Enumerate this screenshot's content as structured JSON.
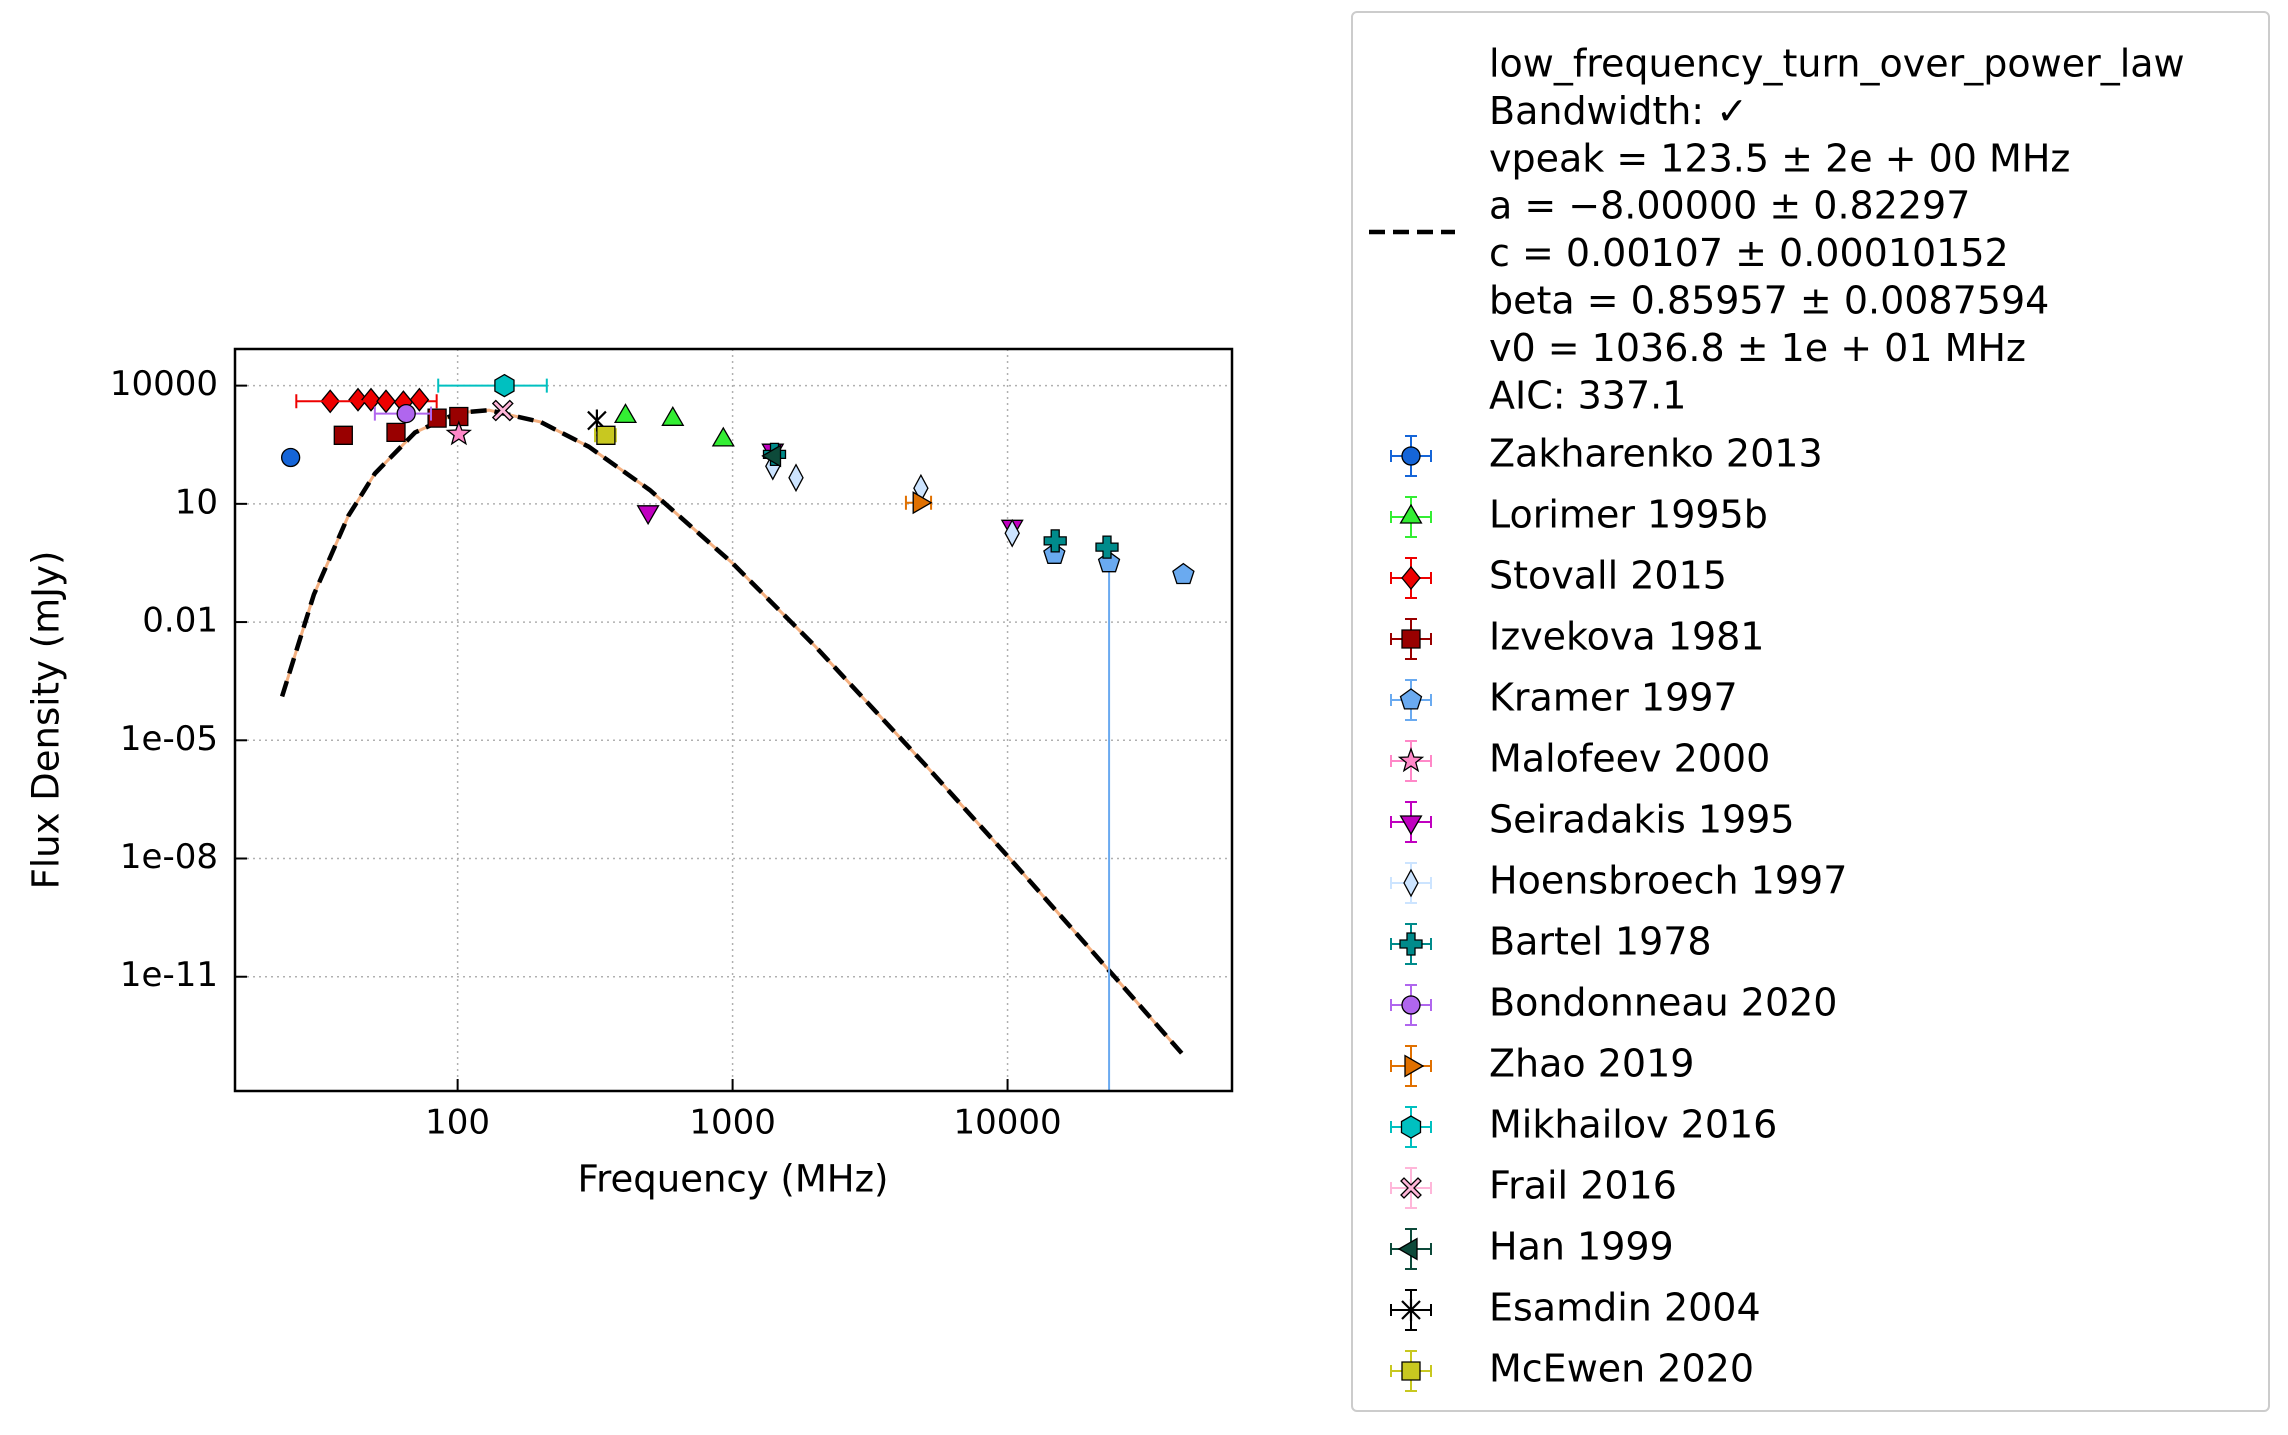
{
  "chart_data": {
    "type": "scatter",
    "x_label": "Frequency (MHz)",
    "y_label": "Flux Density (mJy)",
    "xscale": "log",
    "yscale": "log",
    "grid": true,
    "xlim": [
      15.5,
      65500
    ],
    "ylim": [
      1.26e-14,
      85000
    ],
    "xticks": [
      100,
      1000,
      10000
    ],
    "yticks": [
      10000,
      10,
      0.01,
      {
        "value": 1e-05,
        "label": "1e-05"
      },
      {
        "value": 1e-08,
        "label": "1e-08"
      },
      {
        "value": 1e-11,
        "label": "1e-11"
      }
    ],
    "fit": {
      "name": "low_frequency_turn_over_power_law",
      "color": "#000000",
      "details": [
        "Bandwidth: ✓",
        "vpeak = 123.5 ± 2e + 00 MHz",
        "a = −8.00000 ± 0.82297",
        "c = 0.00107 ± 0.00010152",
        "beta = 0.85957 ± 0.0087594",
        "v0 = 1036.8 ± 1e + 01 MHz",
        "AIC: 337.1"
      ],
      "x": [
        23,
        30,
        40,
        50,
        70,
        100,
        130,
        200,
        300,
        500,
        1000,
        2000,
        5000,
        10000,
        20000,
        43000
      ],
      "values": [
        0.00013,
        0.05,
        4.9,
        59,
        646,
        2040,
        2380,
        1200,
        282,
        22.4,
        0.31,
        0.0024,
        2.45e-06,
        1.15e-08,
        5e-11,
        1.15e-13
      ]
    },
    "series": [
      {
        "name": "Zakharenko 2013",
        "color": "#1565d8",
        "marker": "circle",
        "x": [
          24.7
        ],
        "values": [
          150
        ]
      },
      {
        "name": "Lorimer 1995b",
        "color": "#33ee33",
        "marker": "triangle-up",
        "x": [
          408,
          606,
          925
        ],
        "values": [
          1660,
          1400,
          420
        ]
      },
      {
        "name": "Stovall 2015",
        "color": "#ee0000",
        "marker": "diamond",
        "x": [
          34.4,
          43.4,
          48.4,
          54.9,
          63.5,
          72.6
        ],
        "values": [
          4000,
          4400,
          4400,
          4000,
          3800,
          4400
        ],
        "xerr": [
          null,
          null,
          null,
          29,
          null,
          null
        ]
      },
      {
        "name": "Izvekova 1981",
        "color": "#990000",
        "marker": "square",
        "x": [
          38.4,
          59.7,
          84.2,
          101
        ],
        "values": [
          550,
          650,
          1500,
          1650
        ]
      },
      {
        "name": "Kramer 1997",
        "color": "#6aaaf0",
        "marker": "pentagon",
        "x": [
          14800,
          23400,
          43600
        ],
        "values": [
          0.52,
          0.32,
          0.16
        ],
        "yerr": [
          null,
          0.32,
          null
        ]
      },
      {
        "name": "Malofeev 2000",
        "color": "#ff88c8",
        "marker": "star",
        "x": [
          101
        ],
        "values": [
          590
        ]
      },
      {
        "name": "Seiradakis 1995",
        "color": "#c000c0",
        "marker": "triangle-down",
        "x": [
          493,
          1400,
          10400
        ],
        "values": [
          6.3,
          230,
          2.7
        ]
      },
      {
        "name": "Hoensbroech 1997",
        "color": "#cce4ff",
        "marker": "thin-diamond",
        "x": [
          1400,
          1700,
          4840,
          10400
        ],
        "values": [
          90,
          46,
          25,
          1.8
        ]
      },
      {
        "name": "Bartel 1978",
        "color": "#008b8b",
        "marker": "plus",
        "x": [
          1420,
          14900,
          23000
        ],
        "values": [
          180,
          1.15,
          0.8
        ]
      },
      {
        "name": "Bondonneau 2020",
        "color": "#b066ee",
        "marker": "circle",
        "x": [
          65
        ],
        "values": [
          1950
        ],
        "xerr": [
          15
        ]
      },
      {
        "name": "Zhao 2019",
        "color": "#e07000",
        "marker": "triangle-right",
        "x": [
          4770
        ],
        "values": [
          10.7
        ],
        "xerr": [
          500
        ]
      },
      {
        "name": "Mikhailov 2016",
        "color": "#00c0c0",
        "marker": "hexagon",
        "x": [
          148
        ],
        "values": [
          10000
        ],
        "xerr": [
          63
        ]
      },
      {
        "name": "Frail 2016",
        "color": "#ffb6d9",
        "marker": "x-filled",
        "x": [
          146
        ],
        "values": [
          2340
        ]
      },
      {
        "name": "Han 1999",
        "color": "#0d4a3a",
        "marker": "triangle-left",
        "x": [
          1420
        ],
        "values": [
          165
        ]
      },
      {
        "name": "Esamdin 2004",
        "color": "#000000",
        "marker": "x-stroke",
        "x": [
          321
        ],
        "values": [
          1300
        ]
      },
      {
        "name": "McEwen 2020",
        "color": "#c8c820",
        "marker": "square",
        "x": [
          346
        ],
        "values": [
          550
        ],
        "xerr": [
          30
        ]
      }
    ]
  }
}
